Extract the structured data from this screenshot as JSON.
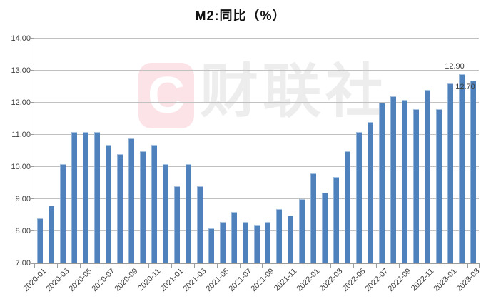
{
  "chart_data": {
    "type": "bar",
    "title": "M2:同比（%）",
    "categories": [
      "2020-01",
      "2020-02",
      "2020-03",
      "2020-04",
      "2020-05",
      "2020-06",
      "2020-07",
      "2020-08",
      "2020-09",
      "2020-10",
      "2020-11",
      "2020-12",
      "2021-01",
      "2021-02",
      "2021-03",
      "2021-04",
      "2021-05",
      "2021-06",
      "2021-07",
      "2021-08",
      "2021-09",
      "2021-10",
      "2021-11",
      "2021-12",
      "2022-01",
      "2022-02",
      "2022-03",
      "2022-04",
      "2022-05",
      "2022-06",
      "2022-07",
      "2022-08",
      "2022-09",
      "2022-10",
      "2022-11",
      "2022-12",
      "2023-01",
      "2023-02",
      "2023-03"
    ],
    "values": [
      8.4,
      8.8,
      10.1,
      11.1,
      11.1,
      11.1,
      10.7,
      10.4,
      10.9,
      10.5,
      10.7,
      10.1,
      9.4,
      10.1,
      9.4,
      8.1,
      8.3,
      8.6,
      8.3,
      8.2,
      8.3,
      8.7,
      8.5,
      9.0,
      9.8,
      9.2,
      9.7,
      10.5,
      11.1,
      11.4,
      12.0,
      12.2,
      12.1,
      11.8,
      12.4,
      11.8,
      12.6,
      12.9,
      12.7
    ],
    "xlabel": "",
    "ylabel": "",
    "ylim": [
      7,
      14
    ],
    "y_tick_labels": [
      "14.00",
      "13.00",
      "12.00",
      "11.00",
      "10.00",
      "9.00",
      "8.00",
      "7.00"
    ],
    "x_tick_label_step": 2,
    "grid": true,
    "legend": "none",
    "data_labels": [
      {
        "text": "12.90",
        "category": "2023-02",
        "placement": "above"
      },
      {
        "text": "12.70",
        "category": "2023-03",
        "placement": "inside-top"
      }
    ],
    "colors": {
      "bar": "#4f81bd",
      "bar_edge": "#95b3d7",
      "gridline": "#c1c1c1",
      "axis": "#9b9b9b",
      "tick_text": "#3f3f3f",
      "title_text": "#111111"
    }
  },
  "watermark": {
    "logo_letter": "C",
    "logo_bg": "#fbe3e8",
    "logo_fg": "#ffffff",
    "text": "财联社",
    "text_color": "#ededed"
  }
}
